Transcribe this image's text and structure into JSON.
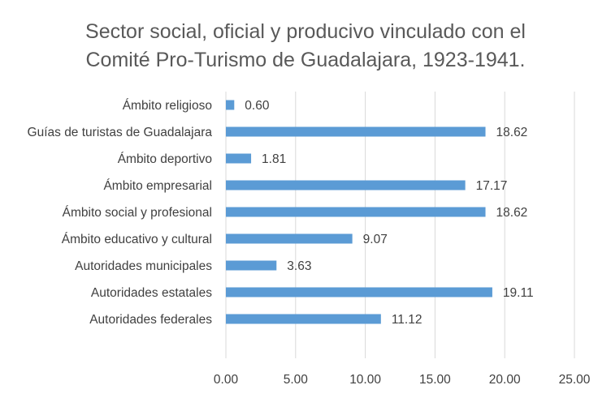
{
  "chart_data": {
    "type": "bar",
    "orientation": "horizontal",
    "title_lines": [
      "Sector social, oficial y producivo vinculado con el",
      "Comité Pro-Turismo de Guadalajara, 1923-1941."
    ],
    "categories": [
      "Ámbito religioso",
      "Guías de turistas de Guadalajara",
      "Ámbito deportivo",
      "Ámbito empresarial",
      "Ámbito social y profesional",
      "Ámbito educativo y cultural",
      "Autoridades municipales",
      "Autoridades estatales",
      "Autoridades federales"
    ],
    "values": [
      0.6,
      18.62,
      1.81,
      17.17,
      18.62,
      9.07,
      3.63,
      19.11,
      11.12
    ],
    "value_labels": [
      "0.60",
      "18.62",
      "1.81",
      "17.17",
      "18.62",
      "9.07",
      "3.63",
      "19.11",
      "11.12"
    ],
    "xlim": [
      0,
      25
    ],
    "x_ticks": [
      0,
      5,
      10,
      15,
      20,
      25
    ],
    "x_tick_labels": [
      "0.00",
      "5.00",
      "10.00",
      "15.00",
      "20.00",
      "25.00"
    ],
    "grid": "vertical",
    "legend": "none",
    "bar_color": "#5B9BD5",
    "gridline_color": "#D9D9D9",
    "text_color": "#404040",
    "title_color": "#595959"
  }
}
